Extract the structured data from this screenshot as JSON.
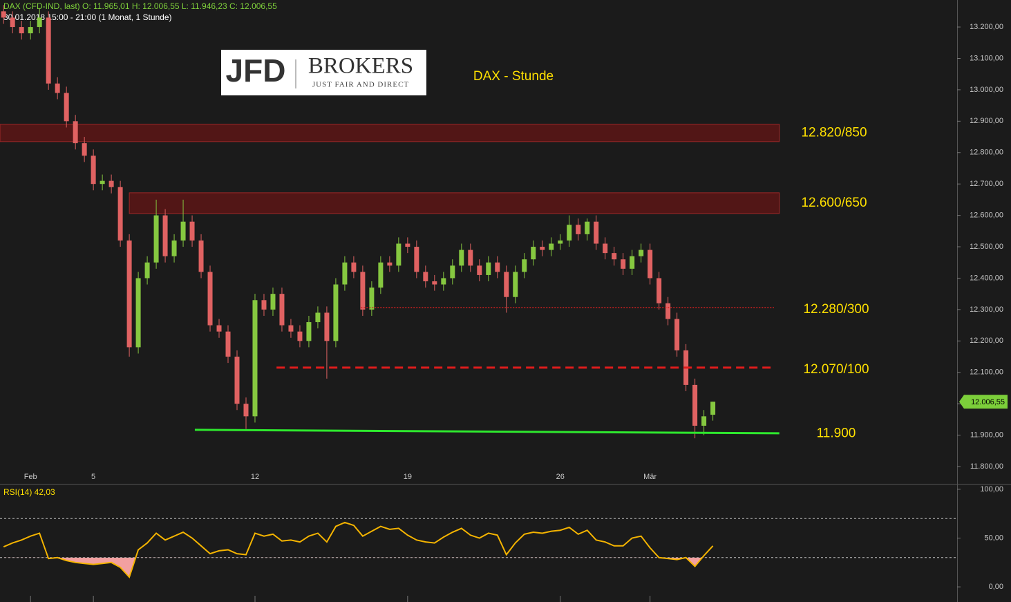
{
  "chart_data": {
    "type": "candlestick",
    "title": "DAX - Stunde",
    "header": {
      "quote": "DAX (CFD-IND, last)  O: 11.965,01  H: 12.006,55  L: 11.946,23  C: 12.006,55",
      "range": "30.01.2018 15:00 - 21:00   (1 Monat, 1 Stunde)"
    },
    "logo": {
      "left": "JFD",
      "right": "BROKERS",
      "tagline": "JUST FAIR AND DIRECT"
    },
    "categories": [
      null,
      null,
      null,
      "Feb",
      null,
      null,
      null,
      null,
      null,
      null,
      "5",
      null,
      null,
      null,
      null,
      null,
      null,
      null,
      null,
      null,
      null,
      null,
      null,
      null,
      null,
      null,
      null,
      null,
      "12",
      null,
      null,
      null,
      null,
      null,
      null,
      null,
      null,
      null,
      null,
      null,
      null,
      null,
      null,
      null,
      null,
      "19",
      null,
      null,
      null,
      null,
      null,
      null,
      null,
      null,
      null,
      null,
      null,
      null,
      null,
      null,
      null,
      null,
      "26",
      null,
      null,
      null,
      null,
      null,
      null,
      null,
      null,
      null,
      "Mär",
      null,
      null,
      null,
      null,
      null,
      null,
      null
    ],
    "open": [
      13250,
      13230,
      13200,
      13180,
      13200,
      13230,
      13020,
      12990,
      12900,
      12830,
      12790,
      12700,
      12710,
      12690,
      12520,
      12180,
      12400,
      12450,
      12600,
      12470,
      12520,
      12580,
      12520,
      12420,
      12250,
      12230,
      12150,
      12000,
      11960,
      12330,
      12300,
      12350,
      12250,
      12230,
      12200,
      12260,
      12290,
      12200,
      12380,
      12450,
      12420,
      12300,
      12370,
      12450,
      12440,
      12510,
      12500,
      12420,
      12390,
      12380,
      12400,
      12440,
      12490,
      12440,
      12410,
      12450,
      12420,
      12340,
      12420,
      12460,
      12500,
      12490,
      12510,
      12520,
      12570,
      12540,
      12580,
      12510,
      12480,
      12460,
      12430,
      12470,
      12490,
      12400,
      12320,
      12270,
      12170,
      12060,
      11930,
      11965.01
    ],
    "high": [
      13270,
      13250,
      13220,
      13220,
      13260,
      13250,
      13040,
      13010,
      12920,
      12850,
      12810,
      12730,
      12730,
      12710,
      12540,
      12420,
      12470,
      12650,
      12620,
      12540,
      12650,
      12600,
      12540,
      12440,
      12270,
      12250,
      12170,
      12020,
      12350,
      12350,
      12370,
      12370,
      12270,
      12250,
      12280,
      12310,
      12310,
      12400,
      12470,
      12470,
      12440,
      12390,
      12470,
      12470,
      12530,
      12530,
      12520,
      12440,
      12410,
      12420,
      12460,
      12510,
      12510,
      12460,
      12470,
      12470,
      12440,
      12440,
      12480,
      12520,
      12520,
      12530,
      12540,
      12600,
      12590,
      12590,
      12600,
      12530,
      12500,
      12480,
      12490,
      12510,
      12510,
      12420,
      12340,
      12290,
      12190,
      12080,
      11980,
      12006.55
    ],
    "low": [
      13210,
      13180,
      13160,
      13160,
      13180,
      13000,
      12970,
      12880,
      12810,
      12770,
      12680,
      12680,
      12670,
      12500,
      12150,
      12160,
      12380,
      12430,
      12450,
      12450,
      12500,
      12500,
      12400,
      12230,
      12210,
      12130,
      11980,
      11920,
      11940,
      12280,
      12280,
      12230,
      12210,
      12180,
      12180,
      12240,
      12080,
      12180,
      12360,
      12400,
      12280,
      12280,
      12350,
      12420,
      12420,
      12480,
      12400,
      12370,
      12360,
      12360,
      12380,
      12420,
      12420,
      12390,
      12390,
      12400,
      12290,
      12320,
      12400,
      12440,
      12470,
      12470,
      12490,
      12500,
      12520,
      12520,
      12490,
      12460,
      12440,
      12410,
      12410,
      12450,
      12380,
      12300,
      12250,
      12150,
      12040,
      11890,
      11900,
      11946.23
    ],
    "close": [
      13230,
      13200,
      13180,
      13200,
      13230,
      13020,
      12990,
      12900,
      12830,
      12790,
      12700,
      12710,
      12690,
      12520,
      12180,
      12400,
      12450,
      12600,
      12470,
      12520,
      12580,
      12520,
      12420,
      12250,
      12230,
      12150,
      12000,
      11960,
      12330,
      12300,
      12350,
      12250,
      12230,
      12200,
      12260,
      12290,
      12200,
      12380,
      12450,
      12420,
      12300,
      12370,
      12450,
      12440,
      12510,
      12500,
      12420,
      12390,
      12380,
      12400,
      12440,
      12490,
      12440,
      12410,
      12450,
      12420,
      12340,
      12420,
      12460,
      12500,
      12490,
      12510,
      12520,
      12570,
      12540,
      12580,
      12510,
      12480,
      12460,
      12430,
      12470,
      12490,
      12400,
      12320,
      12270,
      12170,
      12060,
      11930,
      11960,
      12006.55
    ],
    "up_color": "#86c840",
    "down_color": "#e06262",
    "xlim": [
      -0.4,
      106.2
    ],
    "ylim": [
      11745,
      13286
    ],
    "yticks": [
      {
        "value": 11800,
        "label": "11.800,00"
      },
      {
        "value": 11900,
        "label": "11.900,00"
      },
      {
        "value": 12000,
        "label": "12.000,00"
      },
      {
        "value": 12100,
        "label": "12.100,00"
      },
      {
        "value": 12200,
        "label": "12.200,00"
      },
      {
        "value": 12300,
        "label": "12.300,00"
      },
      {
        "value": 12400,
        "label": "12.400,00"
      },
      {
        "value": 12500,
        "label": "12.500,00"
      },
      {
        "value": 12600,
        "label": "12.600,00"
      },
      {
        "value": 12700,
        "label": "12.700,00"
      },
      {
        "value": 12800,
        "label": "12.800,00"
      },
      {
        "value": 12900,
        "label": "12.900,00"
      },
      {
        "value": 13000,
        "label": "13.000,00"
      },
      {
        "value": 13100,
        "label": "13.100,00"
      },
      {
        "value": 13200,
        "label": "13.200,00"
      }
    ],
    "price_tag": {
      "value": 12006.55,
      "label": "12.006,55",
      "color": "#7ccf3a"
    },
    "zones": [
      {
        "label": "12.820/850",
        "range": [
          12835,
          12890
        ],
        "x": [
          -0.4,
          86.4
        ],
        "color": "#5c1515"
      },
      {
        "label": "12.600/650",
        "range": [
          12606,
          12672
        ],
        "x": [
          14,
          86.4
        ],
        "color": "#5c1515"
      }
    ],
    "levels": [
      {
        "label": "12.280/300",
        "style": "dotted",
        "color": "#d42020",
        "x": [
          39.8,
          85.8
        ],
        "y": [
          12306,
          12306
        ]
      },
      {
        "label": "12.070/100",
        "style": "dashed",
        "color": "#e01c1c",
        "x": [
          30.4,
          85.8
        ],
        "y": [
          12115,
          12115
        ]
      },
      {
        "label": "11.900",
        "style": "solid",
        "color": "#2ee82e",
        "x": [
          21.3,
          86.4
        ],
        "y": [
          11917,
          11906
        ]
      }
    ],
    "rsi": {
      "title": "RSI(14)  42,03",
      "color": "#f5b400",
      "fill": "#f2a0a0",
      "values": [
        41,
        45,
        48,
        52,
        55,
        29,
        30,
        27,
        25,
        24,
        23,
        24,
        25,
        20,
        10,
        38,
        45,
        55,
        48,
        52,
        56,
        50,
        42,
        34,
        37,
        38,
        34,
        33,
        55,
        52,
        54,
        47,
        48,
        46,
        52,
        55,
        46,
        62,
        66,
        63,
        52,
        57,
        62,
        59,
        60,
        53,
        48,
        46,
        45,
        51,
        56,
        60,
        53,
        50,
        55,
        53,
        33,
        45,
        54,
        56,
        55,
        57,
        58,
        61,
        54,
        58,
        48,
        46,
        42,
        42,
        50,
        52,
        40,
        30,
        29,
        28,
        30,
        21,
        32,
        42.03
      ],
      "ylim": [
        -15.5,
        104.9
      ],
      "yticks": [
        {
          "value": 0,
          "label": "0,00"
        },
        {
          "value": 50,
          "label": "50,00"
        },
        {
          "value": 100,
          "label": "100,00"
        }
      ],
      "levels": [
        30,
        70
      ]
    }
  }
}
